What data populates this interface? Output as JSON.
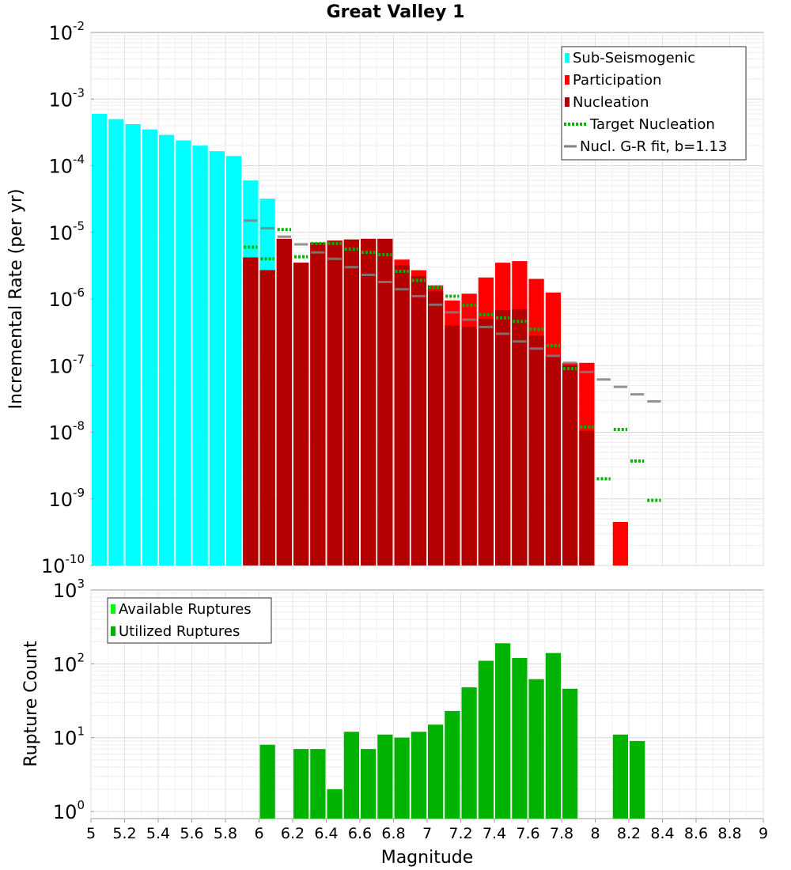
{
  "title": "Great Valley 1",
  "colors": {
    "sub_seismogenic": "#00ffff",
    "participation": "#ff0000",
    "nucleation": "#b30000",
    "target_nucleation": "#00b300",
    "gr_fit": "#808080",
    "available_ruptures": "#00ff00",
    "utilized_ruptures": "#00b300"
  },
  "x_axis": {
    "label": "Magnitude",
    "range": [
      5,
      9
    ],
    "ticks": [
      "5",
      "5.2",
      "5.4",
      "5.6",
      "5.8",
      "6",
      "6.2",
      "6.4",
      "6.6",
      "6.8",
      "7",
      "7.2",
      "7.4",
      "7.6",
      "7.8",
      "8",
      "8.2",
      "8.4",
      "8.6",
      "8.8",
      "9"
    ]
  },
  "chart_data": [
    {
      "type": "bar",
      "title": "Great Valley 1",
      "xlabel": "Magnitude",
      "ylabel": "Incremental Rate (per yr)",
      "y_scale": "log",
      "ylim": [
        1e-10,
        0.01
      ],
      "y_tick_exponents": [
        "-10",
        "-9",
        "-8",
        "-7",
        "-6",
        "-5",
        "-4",
        "-3",
        "-2"
      ],
      "grid": true,
      "legend_placement": "top-right",
      "legend": [
        "Sub-Seismogenic",
        "Participation",
        "Nucleation",
        "Target Nucleation",
        "Nucl. G-R fit, b=1.13"
      ],
      "series": [
        {
          "name": "Sub-Seismogenic",
          "style": "bar",
          "x": [
            5.05,
            5.15,
            5.25,
            5.35,
            5.45,
            5.55,
            5.65,
            5.75,
            5.85,
            5.95,
            6.05
          ],
          "values": [
            0.0006,
            0.0005,
            0.00042,
            0.00035,
            0.00029,
            0.00024,
            0.0002,
            0.000165,
            0.00014,
            6e-05,
            3.2e-05
          ]
        },
        {
          "name": "Participation",
          "style": "bar",
          "x": [
            5.95,
            6.05,
            6.15,
            6.25,
            6.35,
            6.45,
            6.55,
            6.65,
            6.75,
            6.85,
            6.95,
            7.05,
            7.15,
            7.25,
            7.35,
            7.45,
            7.55,
            7.65,
            7.75,
            7.85,
            7.95,
            8.15
          ],
          "values": [
            4.2e-06,
            2.7e-06,
            8e-06,
            3.5e-06,
            7e-06,
            7.5e-06,
            7.8e-06,
            8e-06,
            8e-06,
            3.9e-06,
            2.7e-06,
            1.6e-06,
            9.5e-07,
            1.2e-06,
            2.1e-06,
            3.5e-06,
            3.7e-06,
            2e-06,
            1.25e-06,
            1.1e-07,
            1.1e-07,
            4.5e-10
          ]
        },
        {
          "name": "Nucleation",
          "style": "bar",
          "x": [
            5.95,
            6.05,
            6.15,
            6.25,
            6.35,
            6.45,
            6.55,
            6.65,
            6.75,
            6.85,
            6.95,
            7.05,
            7.15,
            7.25,
            7.35,
            7.45,
            7.55,
            7.65,
            7.75,
            7.85,
            7.95
          ],
          "values": [
            4.2e-06,
            2.7e-06,
            8e-06,
            3.5e-06,
            7e-06,
            7.5e-06,
            7.8e-06,
            8e-06,
            8e-06,
            3.2e-06,
            2.2e-06,
            1.3e-06,
            4e-07,
            3.8e-07,
            5e-07,
            6.8e-07,
            7e-07,
            2.8e-07,
            1.4e-07,
            1e-07,
            1.05e-08
          ]
        },
        {
          "name": "Target Nucleation",
          "style": "dotted-step",
          "x": [
            5.95,
            6.05,
            6.15,
            6.25,
            6.35,
            6.45,
            6.55,
            6.65,
            6.75,
            6.85,
            6.95,
            7.05,
            7.15,
            7.25,
            7.35,
            7.45,
            7.55,
            7.65,
            7.75,
            7.85,
            7.95,
            8.05,
            8.15,
            8.25,
            8.35
          ],
          "values": [
            6e-06,
            4e-06,
            1.1e-05,
            4.3e-06,
            6.8e-06,
            6.8e-06,
            5.6e-06,
            5e-06,
            4.6e-06,
            2.6e-06,
            1.9e-06,
            1.5e-06,
            1.1e-06,
            8e-07,
            5.8e-07,
            5.2e-07,
            4.6e-07,
            3.5e-07,
            2e-07,
            9e-08,
            1.2e-08,
            2e-09,
            1.1e-08,
            3.7e-09,
            9.5e-10
          ]
        },
        {
          "name": "Nucl. G-R fit, b=1.13",
          "style": "solid-step",
          "x": [
            5.95,
            6.05,
            6.15,
            6.25,
            6.35,
            6.45,
            6.55,
            6.65,
            6.75,
            6.85,
            6.95,
            7.05,
            7.15,
            7.25,
            7.35,
            7.45,
            7.55,
            7.65,
            7.75,
            7.85,
            7.95,
            8.05,
            8.15,
            8.25,
            8.35
          ],
          "values": [
            1.5e-05,
            1.15e-05,
            8.6e-06,
            6.6e-06,
            5e-06,
            4e-06,
            3e-06,
            2.3e-06,
            1.8e-06,
            1.4e-06,
            1.1e-06,
            8.2e-07,
            6.3e-07,
            4.9e-07,
            3.8e-07,
            3e-07,
            2.3e-07,
            1.8e-07,
            1.4e-07,
            1.1e-07,
            8e-08,
            6.2e-08,
            4.8e-08,
            3.7e-08,
            2.9e-08
          ]
        }
      ]
    },
    {
      "type": "bar",
      "xlabel": "Magnitude",
      "ylabel": "Rupture Count",
      "y_scale": "log",
      "ylim": [
        0.8,
        1000
      ],
      "y_tick_exponents": [
        "0",
        "1",
        "2",
        "3"
      ],
      "grid": true,
      "legend_placement": "top-left",
      "legend": [
        "Available Ruptures",
        "Utilized Ruptures"
      ],
      "series": [
        {
          "name": "Utilized Ruptures",
          "x": [
            6.05,
            6.25,
            6.35,
            6.45,
            6.55,
            6.65,
            6.75,
            6.85,
            6.95,
            7.05,
            7.15,
            7.25,
            7.35,
            7.45,
            7.55,
            7.65,
            7.75,
            7.85,
            8.15,
            8.25
          ],
          "values": [
            8,
            7,
            7,
            2,
            12,
            7,
            11,
            10,
            12,
            15,
            23,
            48,
            110,
            190,
            120,
            62,
            140,
            46,
            11,
            9
          ]
        }
      ]
    }
  ]
}
